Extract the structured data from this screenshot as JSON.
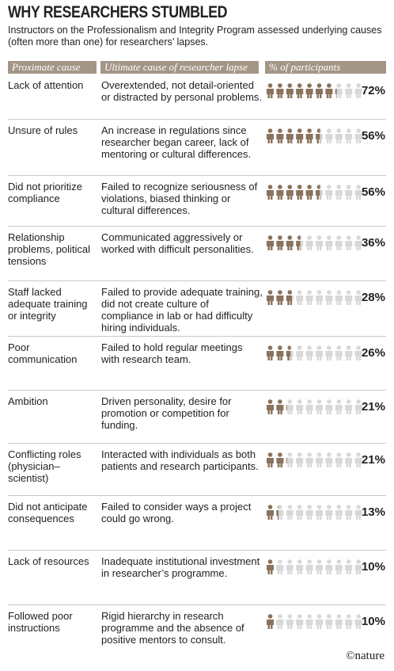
{
  "chart_data": {
    "type": "pictogram",
    "title": "WHY RESEARCHERS STUMBLED",
    "subtitle": "Instructors on the Professionalism and Integrity Program assessed underlying causes (often more than one) for researchers’ lapses.",
    "headers": [
      "Proximate cause",
      "Ultimate cause of researcher lapse",
      "% of participants"
    ],
    "categories": [
      "Lack of attention",
      "Unsure of rules",
      "Did not prioritize compliance",
      "Relationship problems, political tensions",
      "Staff lacked adequate training or integrity",
      "Poor communication",
      "Ambition",
      "Conflicting roles (physician–scientist)",
      "Did not anticipate consequences",
      "Lack of resources",
      "Followed poor instructions"
    ],
    "descriptions": [
      "Overextended, not detail-oriented or distracted by personal problems.",
      "An increase in regulations since researcher began career, lack of mentoring or cultural differences.",
      "Failed to recognize seriousness of violations, biased thinking or cultural differences.",
      "Communicated aggressively or worked with difficult personalities.",
      "Failed to provide adequate training, did not create culture of compliance in lab or had difficulty hiring individuals.",
      "Failed to hold regular meetings with research team.",
      "Driven personality, desire for promotion or competition for funding.",
      "Interacted with individuals as both patients and research participants.",
      "Failed to consider ways a project could go wrong.",
      "Inadequate institutional investment in researcher’s programme.",
      "Rigid hierarchy in research programme and the absence of positive mentors to consult."
    ],
    "values": [
      72,
      56,
      56,
      36,
      28,
      26,
      21,
      21,
      13,
      10,
      10
    ],
    "value_labels": [
      "72%",
      "56%",
      "56%",
      "36%",
      "28%",
      "26%",
      "21%",
      "21%",
      "13%",
      "10%",
      "10%"
    ],
    "color": "#8a735d",
    "empty_color": "#d8d8d8",
    "source": "©nature"
  }
}
